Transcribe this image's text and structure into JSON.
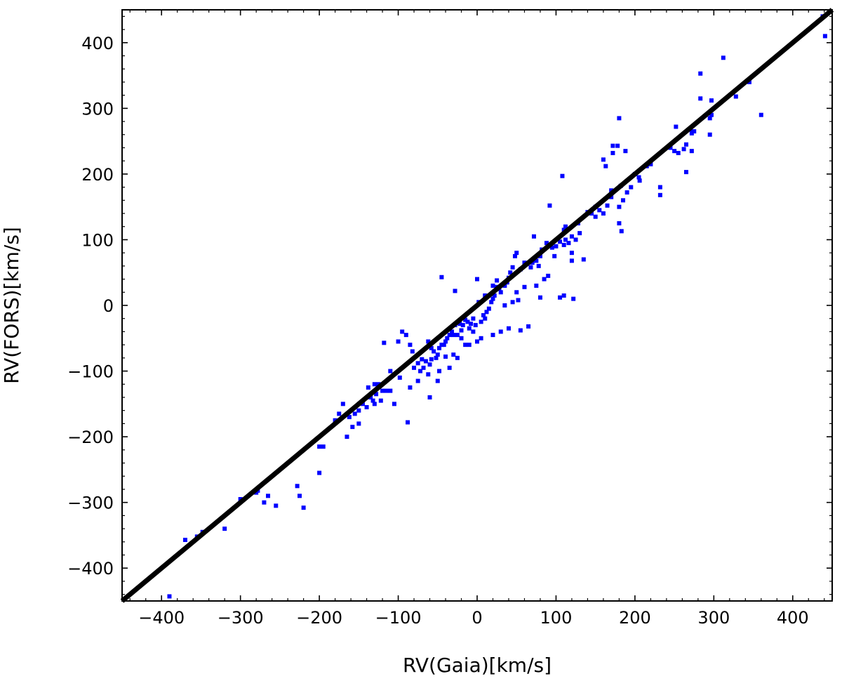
{
  "chart_data": {
    "type": "scatter",
    "xlabel": "RV(Gaia)[km/s]",
    "ylabel": "RV(FORS)[km/s]",
    "xlim": [
      -450,
      450
    ],
    "ylim": [
      -450,
      450
    ],
    "xticks": [
      -400,
      -300,
      -200,
      -100,
      0,
      100,
      200,
      300,
      400
    ],
    "yticks": [
      -400,
      -300,
      -200,
      -100,
      0,
      100,
      200,
      300,
      400
    ],
    "xtick_labels": [
      "−400",
      "−300",
      "−200",
      "−100",
      "0",
      "100",
      "200",
      "300",
      "400"
    ],
    "ytick_labels": [
      "−400",
      "−300",
      "−200",
      "−100",
      "0",
      "100",
      "200",
      "300",
      "400"
    ],
    "grid": false,
    "colors": {
      "points": "#0000ff",
      "line": "#000000"
    },
    "reference_line": {
      "x": [
        -450,
        450
      ],
      "y": [
        -450,
        450
      ]
    },
    "points": [
      [
        438,
        440
      ],
      [
        441,
        410
      ],
      [
        312,
        377
      ],
      [
        283,
        353
      ],
      [
        328,
        318
      ],
      [
        345,
        340
      ],
      [
        360,
        290
      ],
      [
        283,
        315
      ],
      [
        297,
        312
      ],
      [
        297,
        290
      ],
      [
        295,
        285
      ],
      [
        295,
        260
      ],
      [
        275,
        265
      ],
      [
        272,
        262
      ],
      [
        270,
        268
      ],
      [
        272,
        235
      ],
      [
        265,
        245
      ],
      [
        262,
        238
      ],
      [
        255,
        232
      ],
      [
        252,
        272
      ],
      [
        250,
        235
      ],
      [
        265,
        203
      ],
      [
        245,
        240
      ],
      [
        232,
        180
      ],
      [
        232,
        168
      ],
      [
        220,
        215
      ],
      [
        215,
        212
      ],
      [
        206,
        190
      ],
      [
        205,
        195
      ],
      [
        200,
        200
      ],
      [
        195,
        180
      ],
      [
        190,
        172
      ],
      [
        185,
        160
      ],
      [
        180,
        285
      ],
      [
        178,
        243
      ],
      [
        172,
        243
      ],
      [
        170,
        175
      ],
      [
        170,
        165
      ],
      [
        180,
        150
      ],
      [
        165,
        152
      ],
      [
        160,
        140
      ],
      [
        182,
        182
      ],
      [
        172,
        232
      ],
      [
        188,
        235
      ],
      [
        163,
        212
      ],
      [
        160,
        222
      ],
      [
        183,
        113
      ],
      [
        180,
        125
      ],
      [
        155,
        145
      ],
      [
        150,
        135
      ],
      [
        150,
        150
      ],
      [
        145,
        140
      ],
      [
        140,
        142
      ],
      [
        130,
        110
      ],
      [
        128,
        125
      ],
      [
        125,
        100
      ],
      [
        120,
        68
      ],
      [
        120,
        80
      ],
      [
        120,
        105
      ],
      [
        116,
        95
      ],
      [
        112,
        120
      ],
      [
        110,
        115
      ],
      [
        112,
        100
      ],
      [
        110,
        92
      ],
      [
        105,
        97
      ],
      [
        100,
        90
      ],
      [
        95,
        88
      ],
      [
        108,
        197
      ],
      [
        92,
        152
      ],
      [
        88,
        95
      ],
      [
        82,
        85
      ],
      [
        80,
        75
      ],
      [
        78,
        60
      ],
      [
        75,
        68
      ],
      [
        72,
        105
      ],
      [
        70,
        65
      ],
      [
        68,
        58
      ],
      [
        60,
        65
      ],
      [
        55,
        55
      ],
      [
        50,
        80
      ],
      [
        48,
        75
      ],
      [
        45,
        58
      ],
      [
        42,
        50
      ],
      [
        40,
        42
      ],
      [
        38,
        35
      ],
      [
        35,
        30
      ],
      [
        30,
        20
      ],
      [
        28,
        25
      ],
      [
        25,
        28
      ],
      [
        22,
        15
      ],
      [
        20,
        10
      ],
      [
        18,
        5
      ],
      [
        15,
        -5
      ],
      [
        12,
        -10
      ],
      [
        10,
        -20
      ],
      [
        8,
        -15
      ],
      [
        5,
        -25
      ],
      [
        2,
        5
      ],
      [
        0,
        40
      ],
      [
        -2,
        -30
      ],
      [
        -5,
        -20
      ],
      [
        -8,
        -28
      ],
      [
        -10,
        -35
      ],
      [
        -12,
        -25
      ],
      [
        -15,
        -22
      ],
      [
        -18,
        -30
      ],
      [
        -20,
        -38
      ],
      [
        -22,
        -28
      ],
      [
        -25,
        -45
      ],
      [
        -28,
        -30
      ],
      [
        -30,
        -45
      ],
      [
        -32,
        -40
      ],
      [
        -35,
        -45
      ],
      [
        -38,
        -50
      ],
      [
        -40,
        -55
      ],
      [
        -42,
        -60
      ],
      [
        -45,
        43
      ],
      [
        -45,
        -60
      ],
      [
        -48,
        -65
      ],
      [
        -50,
        -75
      ],
      [
        -52,
        -80
      ],
      [
        -55,
        -70
      ],
      [
        -58,
        -65
      ],
      [
        -60,
        -90
      ],
      [
        -62,
        -55
      ],
      [
        -65,
        -85
      ],
      [
        -68,
        -95
      ],
      [
        -70,
        -82
      ],
      [
        -72,
        -100
      ],
      [
        -75,
        -115
      ],
      [
        -80,
        -95
      ],
      [
        -82,
        -70
      ],
      [
        -85,
        -125
      ],
      [
        -88,
        -178
      ],
      [
        -90,
        -45
      ],
      [
        -95,
        -40
      ],
      [
        -98,
        -110
      ],
      [
        -100,
        -55
      ],
      [
        -105,
        -150
      ],
      [
        -110,
        -100
      ],
      [
        -115,
        -130
      ],
      [
        -120,
        -130
      ],
      [
        -122,
        -145
      ],
      [
        -125,
        -120
      ],
      [
        -128,
        -135
      ],
      [
        -130,
        -150
      ],
      [
        -132,
        -145
      ],
      [
        -135,
        -140
      ],
      [
        -138,
        -125
      ],
      [
        -140,
        -155
      ],
      [
        -145,
        -150
      ],
      [
        -150,
        -160
      ],
      [
        -155,
        -165
      ],
      [
        -158,
        -185
      ],
      [
        -162,
        -170
      ],
      [
        -165,
        -200
      ],
      [
        -170,
        -150
      ],
      [
        -175,
        -165
      ],
      [
        -180,
        -175
      ],
      [
        -195,
        -215
      ],
      [
        -200,
        -215
      ],
      [
        -200,
        -255
      ],
      [
        -220,
        -308
      ],
      [
        -225,
        -290
      ],
      [
        -228,
        -275
      ],
      [
        -255,
        -305
      ],
      [
        -265,
        -290
      ],
      [
        -270,
        -300
      ],
      [
        -278,
        -282
      ],
      [
        -280,
        -285
      ],
      [
        -300,
        -295
      ],
      [
        -320,
        -340
      ],
      [
        -348,
        -345
      ],
      [
        -355,
        -352
      ],
      [
        -370,
        -357
      ],
      [
        -390,
        -443
      ],
      [
        -118,
        -57
      ],
      [
        -58,
        -82
      ],
      [
        -5,
        -40
      ],
      [
        20,
        -45
      ],
      [
        30,
        -40
      ],
      [
        40,
        -35
      ],
      [
        55,
        -38
      ],
      [
        65,
        -32
      ],
      [
        80,
        12
      ],
      [
        105,
        12
      ],
      [
        110,
        15
      ],
      [
        122,
        10
      ],
      [
        135,
        70
      ],
      [
        98,
        75
      ],
      [
        50,
        20
      ],
      [
        60,
        28
      ],
      [
        75,
        30
      ],
      [
        85,
        40
      ],
      [
        90,
        45
      ],
      [
        25,
        38
      ],
      [
        20,
        30
      ],
      [
        10,
        15
      ],
      [
        35,
        0
      ],
      [
        45,
        5
      ],
      [
        52,
        8
      ],
      [
        -75,
        -88
      ],
      [
        -85,
        -60
      ],
      [
        -28,
        22
      ],
      [
        -20,
        -50
      ],
      [
        -15,
        -60
      ],
      [
        -60,
        -140
      ],
      [
        -50,
        -115
      ],
      [
        -40,
        -78
      ],
      [
        -25,
        -80
      ],
      [
        -10,
        -60
      ],
      [
        0,
        -55
      ],
      [
        5,
        -50
      ],
      [
        -150,
        -180
      ],
      [
        -130,
        -120
      ],
      [
        -110,
        -130
      ],
      [
        -62,
        -105
      ],
      [
        -48,
        -100
      ],
      [
        -35,
        -95
      ],
      [
        -30,
        -75
      ]
    ]
  }
}
